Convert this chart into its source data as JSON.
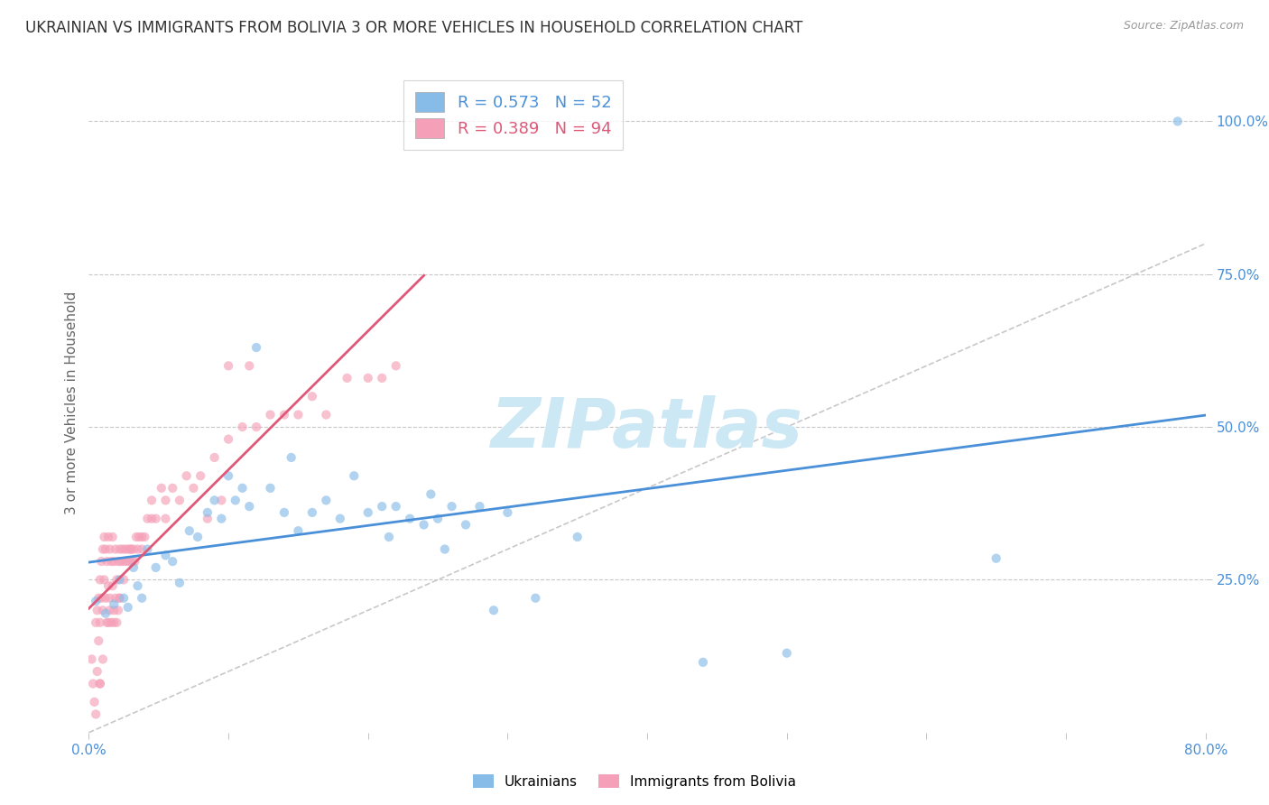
{
  "title": "UKRAINIAN VS IMMIGRANTS FROM BOLIVIA 3 OR MORE VEHICLES IN HOUSEHOLD CORRELATION CHART",
  "source": "Source: ZipAtlas.com",
  "ylabel": "3 or more Vehicles in Household",
  "ytick_labels": [
    "100.0%",
    "75.0%",
    "50.0%",
    "25.0%"
  ],
  "ytick_values": [
    1.0,
    0.75,
    0.5,
    0.25
  ],
  "xlim": [
    0.0,
    0.8
  ],
  "ylim": [
    0.0,
    1.08
  ],
  "background_color": "#ffffff",
  "grid_color": "#c8c8c8",
  "watermark_text": "ZIPatlas",
  "watermark_color": "#cde8f5",
  "blue_scatter_x": [
    0.005,
    0.012,
    0.018,
    0.022,
    0.025,
    0.028,
    0.032,
    0.035,
    0.038,
    0.042,
    0.048,
    0.055,
    0.06,
    0.065,
    0.072,
    0.078,
    0.085,
    0.09,
    0.095,
    0.1,
    0.105,
    0.11,
    0.115,
    0.12,
    0.13,
    0.14,
    0.145,
    0.15,
    0.16,
    0.17,
    0.18,
    0.19,
    0.2,
    0.21,
    0.215,
    0.22,
    0.23,
    0.24,
    0.245,
    0.25,
    0.255,
    0.26,
    0.27,
    0.28,
    0.29,
    0.3,
    0.32,
    0.35,
    0.44,
    0.5,
    0.65,
    0.78
  ],
  "blue_scatter_y": [
    0.215,
    0.195,
    0.21,
    0.25,
    0.22,
    0.205,
    0.27,
    0.24,
    0.22,
    0.3,
    0.27,
    0.29,
    0.28,
    0.245,
    0.33,
    0.32,
    0.36,
    0.38,
    0.35,
    0.42,
    0.38,
    0.4,
    0.37,
    0.63,
    0.4,
    0.36,
    0.45,
    0.33,
    0.36,
    0.38,
    0.35,
    0.42,
    0.36,
    0.37,
    0.32,
    0.37,
    0.35,
    0.34,
    0.39,
    0.35,
    0.3,
    0.37,
    0.34,
    0.37,
    0.2,
    0.36,
    0.22,
    0.32,
    0.115,
    0.13,
    0.285,
    1.0
  ],
  "pink_scatter_x": [
    0.002,
    0.003,
    0.004,
    0.005,
    0.006,
    0.006,
    0.007,
    0.007,
    0.008,
    0.008,
    0.008,
    0.009,
    0.009,
    0.01,
    0.01,
    0.011,
    0.011,
    0.012,
    0.012,
    0.013,
    0.013,
    0.014,
    0.014,
    0.015,
    0.015,
    0.015,
    0.016,
    0.016,
    0.017,
    0.017,
    0.018,
    0.018,
    0.019,
    0.019,
    0.02,
    0.02,
    0.021,
    0.021,
    0.022,
    0.022,
    0.023,
    0.024,
    0.025,
    0.026,
    0.027,
    0.028,
    0.029,
    0.03,
    0.031,
    0.032,
    0.033,
    0.034,
    0.035,
    0.036,
    0.038,
    0.04,
    0.042,
    0.045,
    0.048,
    0.052,
    0.055,
    0.06,
    0.065,
    0.07,
    0.075,
    0.08,
    0.085,
    0.09,
    0.095,
    0.1,
    0.11,
    0.12,
    0.13,
    0.14,
    0.15,
    0.16,
    0.17,
    0.185,
    0.2,
    0.21,
    0.22,
    0.1,
    0.115,
    0.005,
    0.008,
    0.01,
    0.014,
    0.018,
    0.022,
    0.025,
    0.03,
    0.038,
    0.045,
    0.055
  ],
  "pink_scatter_y": [
    0.12,
    0.08,
    0.05,
    0.18,
    0.2,
    0.1,
    0.22,
    0.15,
    0.25,
    0.18,
    0.08,
    0.28,
    0.22,
    0.3,
    0.2,
    0.32,
    0.25,
    0.3,
    0.22,
    0.28,
    0.18,
    0.32,
    0.24,
    0.3,
    0.22,
    0.2,
    0.28,
    0.18,
    0.32,
    0.24,
    0.28,
    0.2,
    0.3,
    0.22,
    0.25,
    0.18,
    0.28,
    0.2,
    0.3,
    0.22,
    0.28,
    0.3,
    0.28,
    0.3,
    0.28,
    0.3,
    0.28,
    0.3,
    0.28,
    0.3,
    0.28,
    0.32,
    0.3,
    0.32,
    0.3,
    0.32,
    0.35,
    0.38,
    0.35,
    0.4,
    0.35,
    0.4,
    0.38,
    0.42,
    0.4,
    0.42,
    0.35,
    0.45,
    0.38,
    0.48,
    0.5,
    0.5,
    0.52,
    0.52,
    0.52,
    0.55,
    0.52,
    0.58,
    0.58,
    0.58,
    0.6,
    0.6,
    0.6,
    0.03,
    0.08,
    0.12,
    0.18,
    0.18,
    0.22,
    0.25,
    0.3,
    0.32,
    0.35,
    0.38
  ],
  "blue_line_color": "#4a90d9",
  "pink_line_color": "#e05878",
  "dashed_line_color": "#c8c8c8",
  "scatter_blue_color": "#88bce8",
  "scatter_pink_color": "#f5a0b8",
  "scatter_alpha": 0.65,
  "scatter_size": 55,
  "title_fontsize": 12,
  "axis_color": "#4a90d9",
  "ylabel_color": "#666666",
  "legend_blue_label": "R = 0.573   N = 52",
  "legend_pink_label": "R = 0.389   N = 94",
  "bottom_legend_blue": "Ukrainians",
  "bottom_legend_pink": "Immigrants from Bolivia"
}
